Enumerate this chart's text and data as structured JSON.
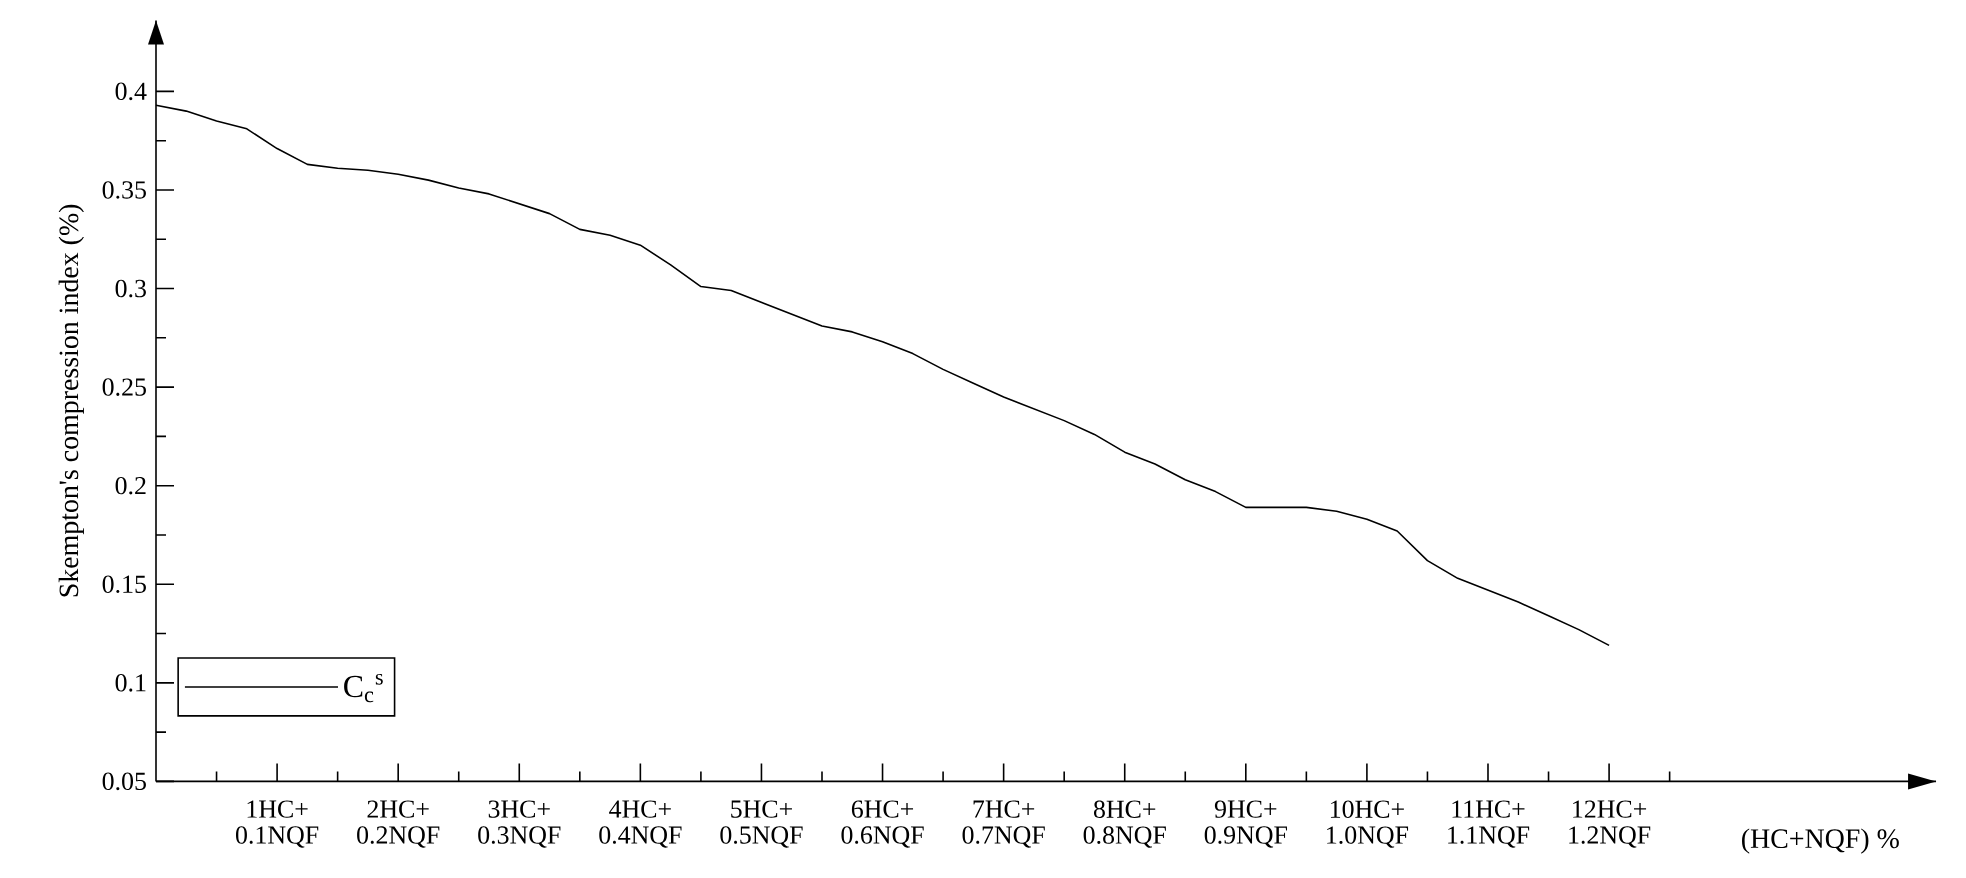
{
  "chart_data": {
    "type": "line",
    "xlabel": "(HC+NQF) %",
    "ylabel": "Skempton's compression index (%)",
    "categories": [
      null,
      null,
      null,
      null,
      "1HC+ 0.1NQF",
      null,
      null,
      null,
      "2HC+ 0.2NQF",
      null,
      null,
      null,
      "3HC+ 0.3NQF",
      null,
      null,
      null,
      "4HC+ 0.4NQF",
      null,
      null,
      null,
      "5HC+ 0.5NQF",
      null,
      null,
      null,
      "6HC+ 0.6NQF",
      null,
      null,
      null,
      "7HC+ 0.7NQF",
      null,
      null,
      null,
      "8HC+ 0.8NQF",
      null,
      null,
      null,
      "9HC+ 0.9NQF",
      null,
      null,
      null,
      "10HC+ 1.0NQF",
      null,
      null,
      null,
      "11HC+ 1.1NQF",
      null,
      null,
      null,
      "12HC+ 1.2NQF"
    ],
    "ylim": [
      0.05,
      0.436
    ],
    "yticks": [
      0.05,
      {
        "value": 0.075,
        "label": null
      },
      0.1,
      {
        "value": 0.125,
        "label": null
      },
      0.15,
      {
        "value": 0.175,
        "label": null
      },
      0.2,
      {
        "value": 0.225,
        "label": null
      },
      0.25,
      {
        "value": 0.275,
        "label": null
      },
      0.3,
      {
        "value": 0.325,
        "label": null
      },
      0.35,
      {
        "value": 0.375,
        "label": null
      },
      0.4
    ],
    "legend": "bottom left",
    "grid": false,
    "marker": "none",
    "line_style": "solid",
    "series": [
      {
        "name": "C$_{c}$$^{s}$",
        "color": "#000000",
        "values": [
          0.393,
          0.39,
          0.385,
          0.381,
          0.371,
          0.363,
          0.361,
          0.36,
          0.358,
          0.355,
          0.351,
          0.348,
          0.343,
          0.338,
          0.33,
          0.327,
          0.322,
          0.312,
          0.301,
          0.299,
          0.293,
          0.287,
          0.281,
          0.278,
          0.273,
          0.267,
          0.259,
          0.252,
          0.245,
          0.239,
          0.233,
          0.226,
          0.217,
          0.211,
          0.203,
          0.197,
          0.189,
          0.189,
          0.189,
          0.187,
          0.183,
          0.177,
          0.162,
          0.153,
          0.147,
          0.141,
          0.134,
          0.127,
          0.119
        ]
      }
    ]
  }
}
